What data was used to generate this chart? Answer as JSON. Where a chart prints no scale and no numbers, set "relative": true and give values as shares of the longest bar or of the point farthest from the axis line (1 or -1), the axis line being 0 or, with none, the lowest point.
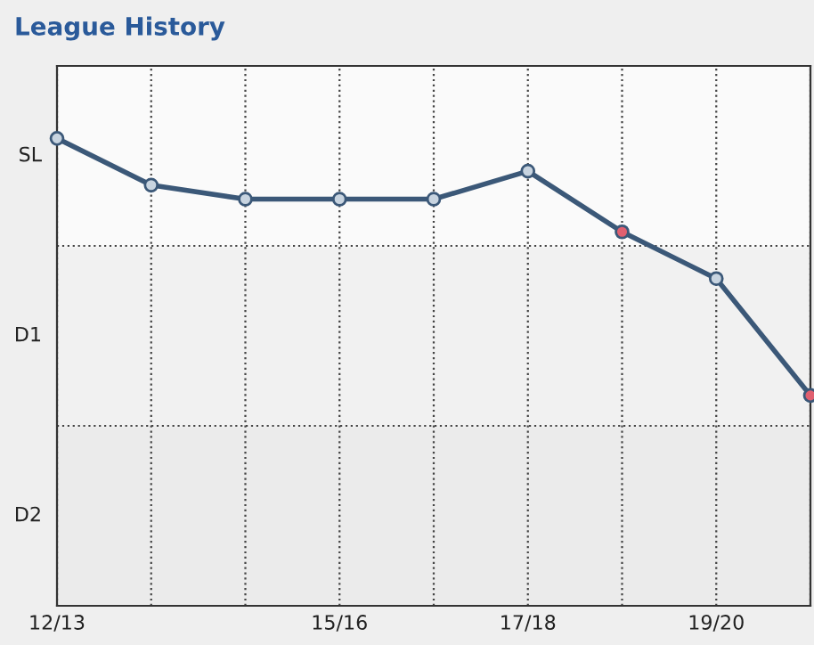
{
  "chart_data": {
    "type": "line",
    "title": "League History",
    "relative": true,
    "categories": [
      "12/13",
      null,
      null,
      "15/16",
      null,
      "17/18",
      null,
      "19/20",
      null
    ],
    "series": [
      {
        "color": "#3b5878",
        "values": [
          1,
          0.9,
          0.87,
          0.87,
          0.87,
          0.93,
          0.8,
          0.7,
          0.45
        ],
        "colors": [
          "#c8d4e0",
          "#c8d4e0",
          "#c8d4e0",
          "#c8d4e0",
          "#c8d4e0",
          "#c8d4e0",
          "#e06070",
          "#c8d4e0",
          "#e06070"
        ]
      }
    ],
    "bands": [
      {
        "axis": "y",
        "from": 0,
        "to": 0.385,
        "label": "D2",
        "color": "#ebebeb"
      },
      {
        "axis": "y",
        "from": 0.385,
        "to": 0.77,
        "label": "D1",
        "color": "#f1f1f1"
      },
      {
        "axis": "y",
        "from": 0.77,
        "to": 1.155,
        "label": "SL",
        "color": "#fafafa"
      }
    ],
    "ref_lines": [
      {
        "axis": "y",
        "value": 0.385,
        "color": "#444444",
        "line_style": "dotted"
      },
      {
        "axis": "y",
        "value": 0.77,
        "color": "#444444",
        "line_style": "dotted"
      }
    ],
    "grid": "x",
    "marker": "circle",
    "line_style": "solid",
    "legend": false
  }
}
